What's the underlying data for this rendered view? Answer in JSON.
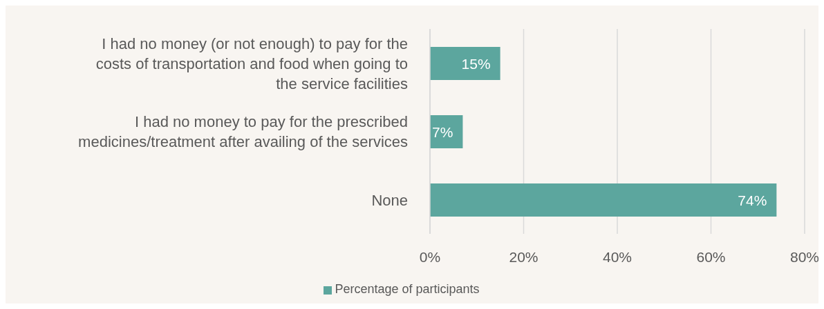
{
  "chart_data": {
    "type": "bar",
    "orientation": "horizontal",
    "categories": [
      "I had no money (or not enough) to pay for the costs of transportation and food when going to the service facilities",
      "I had no money to pay for the prescribed medicines/treatment after availing of the services",
      "None"
    ],
    "series": [
      {
        "name": "Percentage of participants",
        "color": "#5ca69e",
        "values": [
          15,
          7,
          74
        ],
        "value_labels": [
          "15%",
          "7%",
          "74%"
        ]
      }
    ],
    "xlim": [
      0,
      80
    ],
    "xticks": [
      {
        "value": 0,
        "label": "0%"
      },
      {
        "value": 20,
        "label": "20%"
      },
      {
        "value": 40,
        "label": "40%"
      },
      {
        "value": 60,
        "label": "60%"
      },
      {
        "value": 80,
        "label": "80%"
      }
    ],
    "grid": "x",
    "legend": "bottom"
  }
}
